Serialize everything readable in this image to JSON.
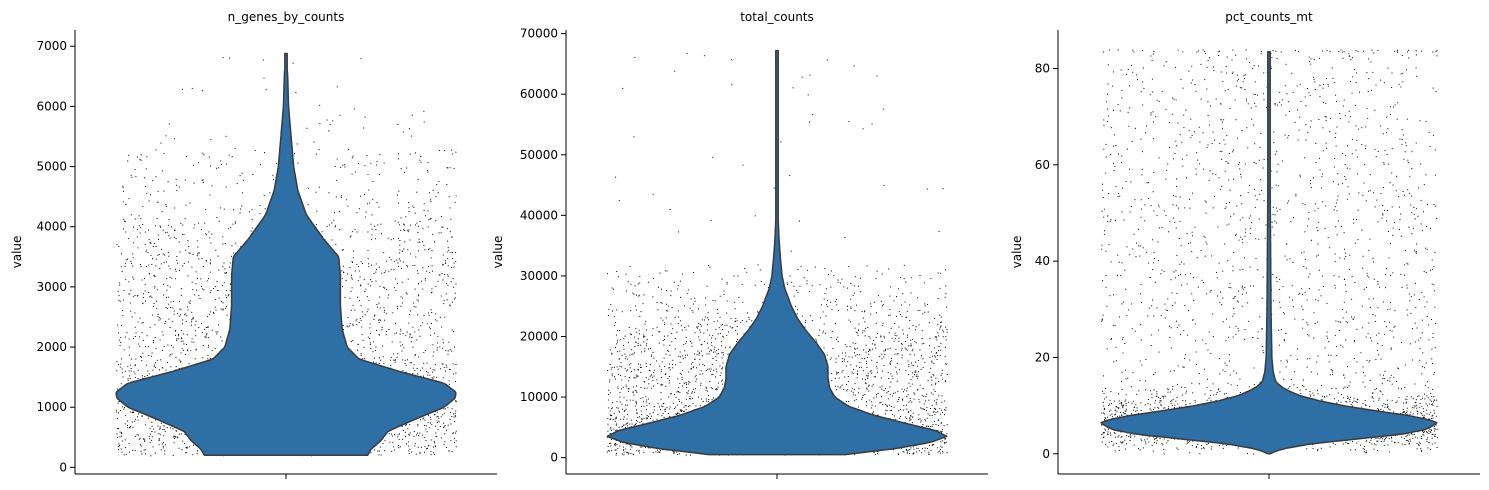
{
  "figure": {
    "background": "#ffffff"
  },
  "style": {
    "violin_fill": "#2e6fa6",
    "violin_edge": "#3b3b3b",
    "point_color": "#000000"
  },
  "chart_data": [
    {
      "type": "violin",
      "title": "n_genes_by_counts",
      "xlabel": "",
      "ylabel": "value",
      "ylim": [
        -110,
        7270
      ],
      "yticks": [
        0,
        1000,
        2000,
        3000,
        4000,
        5000,
        6000,
        7000
      ],
      "tick_labels": [
        "0",
        "1000",
        "2000",
        "3000",
        "4000",
        "5000",
        "6000",
        "7000"
      ],
      "grid": false,
      "data_range": [
        200,
        6880
      ],
      "point_cap": 5300,
      "density_profile": [
        [
          200,
          0.48
        ],
        [
          300,
          0.5
        ],
        [
          450,
          0.56
        ],
        [
          600,
          0.6
        ],
        [
          800,
          0.76
        ],
        [
          1000,
          0.93
        ],
        [
          1150,
          0.995
        ],
        [
          1250,
          1.0
        ],
        [
          1400,
          0.93
        ],
        [
          1600,
          0.66
        ],
        [
          1800,
          0.43
        ],
        [
          2000,
          0.36
        ],
        [
          2300,
          0.33
        ],
        [
          2700,
          0.32
        ],
        [
          3200,
          0.32
        ],
        [
          3500,
          0.31
        ],
        [
          3800,
          0.22
        ],
        [
          4200,
          0.12
        ],
        [
          4600,
          0.07
        ],
        [
          5000,
          0.045
        ],
        [
          5500,
          0.03
        ],
        [
          6000,
          0.015
        ],
        [
          6500,
          0.01
        ],
        [
          6880,
          0.0
        ]
      ]
    },
    {
      "type": "violin",
      "title": "total_counts",
      "xlabel": "",
      "ylabel": "value",
      "ylim": [
        -2700,
        70600
      ],
      "yticks": [
        0,
        10000,
        20000,
        30000,
        40000,
        50000,
        60000,
        70000
      ],
      "tick_labels": [
        "0",
        "10000",
        "20000",
        "30000",
        "40000",
        "50000",
        "60000",
        "70000"
      ],
      "grid": false,
      "data_range": [
        500,
        67200
      ],
      "point_cap": 32000,
      "density_profile": [
        [
          500,
          0.4
        ],
        [
          1500,
          0.7
        ],
        [
          2500,
          0.9
        ],
        [
          3500,
          1.0
        ],
        [
          4500,
          0.93
        ],
        [
          5500,
          0.78
        ],
        [
          7000,
          0.57
        ],
        [
          8500,
          0.42
        ],
        [
          10000,
          0.34
        ],
        [
          11500,
          0.31
        ],
        [
          13000,
          0.3
        ],
        [
          15000,
          0.3
        ],
        [
          17000,
          0.28
        ],
        [
          19000,
          0.23
        ],
        [
          21000,
          0.17
        ],
        [
          23000,
          0.12
        ],
        [
          25000,
          0.085
        ],
        [
          28000,
          0.045
        ],
        [
          30000,
          0.03
        ],
        [
          33000,
          0.02
        ],
        [
          36000,
          0.012
        ],
        [
          40000,
          0.006
        ],
        [
          50000,
          0.005
        ],
        [
          60000,
          0.005
        ],
        [
          67200,
          0.0
        ]
      ]
    },
    {
      "type": "violin",
      "title": "pct_counts_mt",
      "xlabel": "",
      "ylabel": "value",
      "ylim": [
        -4.2,
        88
      ],
      "yticks": [
        0,
        20,
        40,
        60,
        80
      ],
      "tick_labels": [
        "0",
        "20",
        "40",
        "60",
        "80"
      ],
      "grid": false,
      "data_range": [
        0,
        83.5
      ],
      "point_cap": 84,
      "density_profile": [
        [
          0,
          0.0
        ],
        [
          1,
          0.08
        ],
        [
          2,
          0.24
        ],
        [
          3,
          0.5
        ],
        [
          4,
          0.78
        ],
        [
          5,
          0.93
        ],
        [
          6,
          0.985
        ],
        [
          6.5,
          1.0
        ],
        [
          7,
          0.96
        ],
        [
          8,
          0.82
        ],
        [
          9,
          0.62
        ],
        [
          10,
          0.44
        ],
        [
          11,
          0.3
        ],
        [
          12,
          0.19
        ],
        [
          13,
          0.12
        ],
        [
          14,
          0.07
        ],
        [
          15,
          0.04
        ],
        [
          17,
          0.025
        ],
        [
          20,
          0.017
        ],
        [
          30,
          0.012
        ],
        [
          45,
          0.009
        ],
        [
          60,
          0.006
        ],
        [
          75,
          0.004
        ],
        [
          83.5,
          0.0
        ]
      ]
    }
  ]
}
